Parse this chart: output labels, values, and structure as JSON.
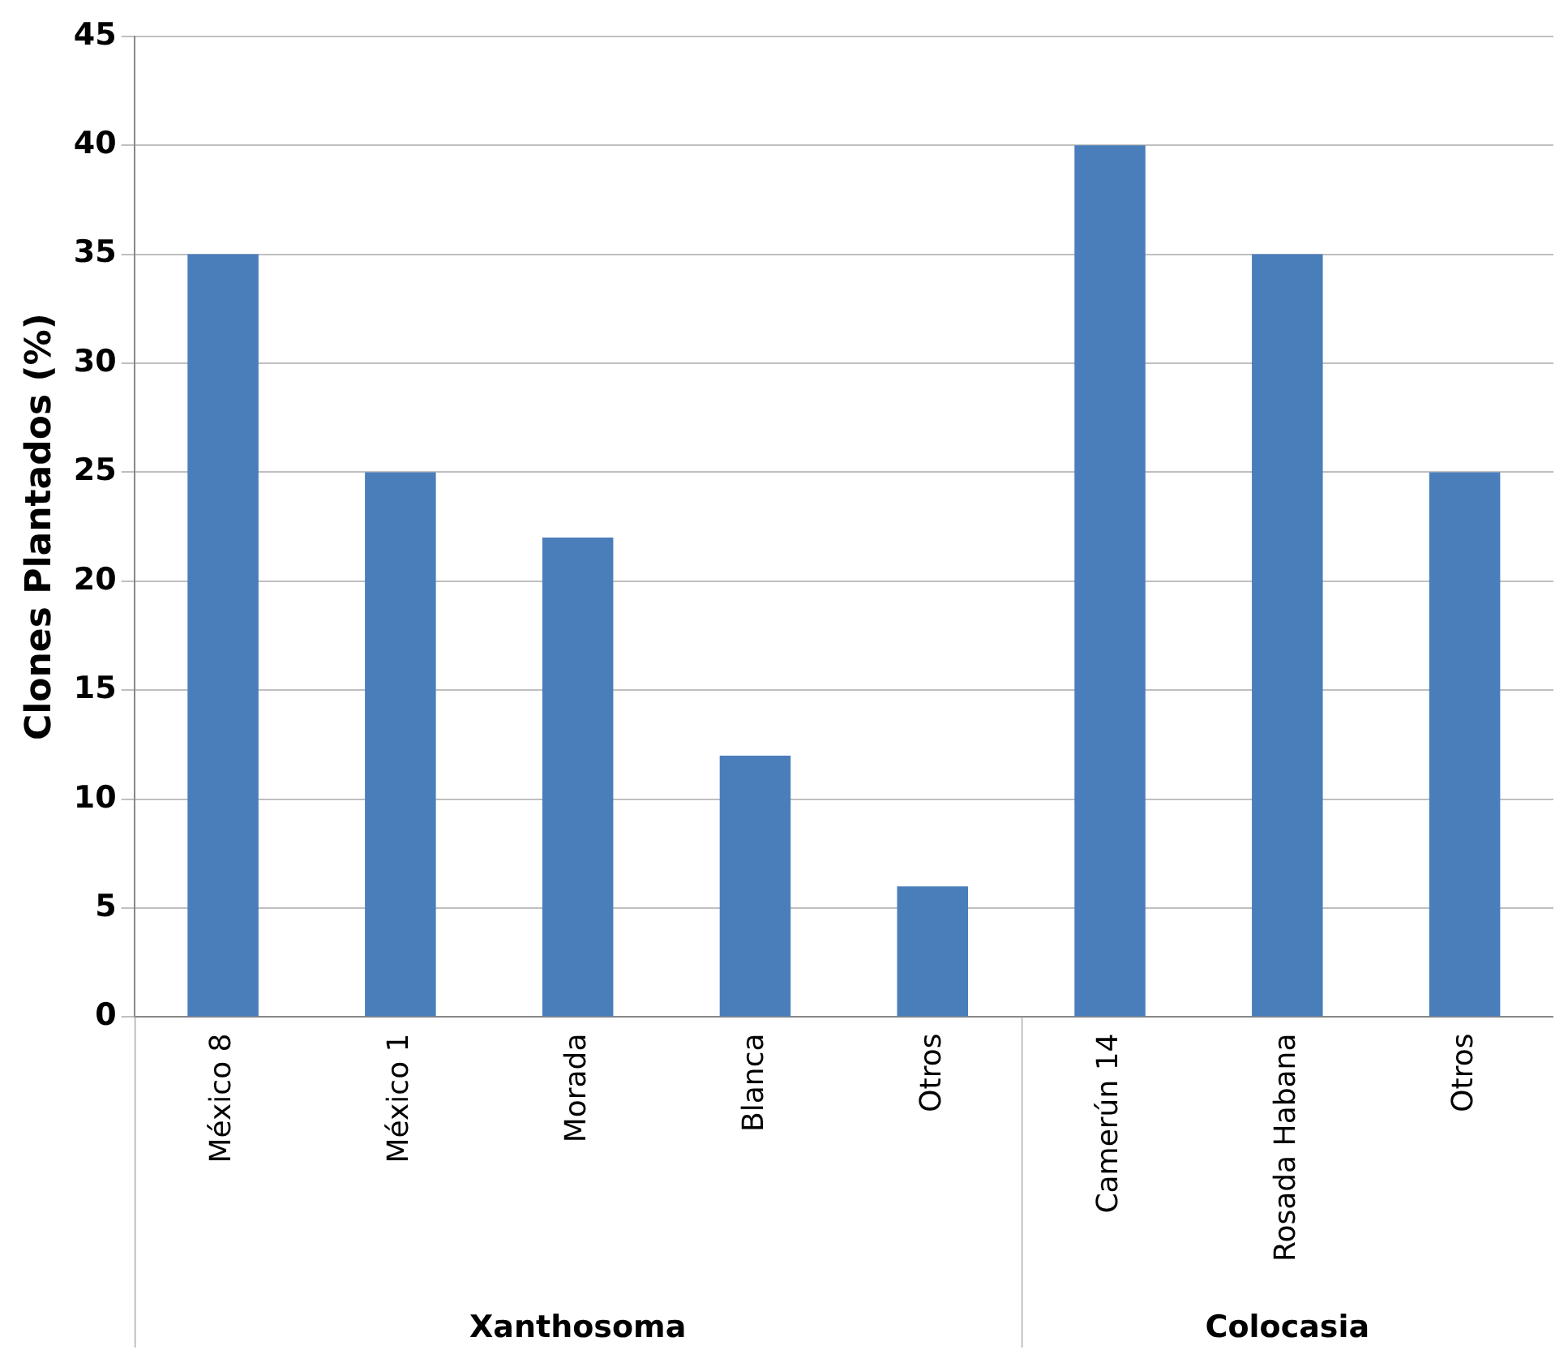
{
  "chart_data": {
    "type": "bar",
    "ylabel": "Clones Plantados (%)",
    "categories": [
      "México 8",
      "México 1",
      "Morada",
      "Blanca",
      "Otros",
      "Camerún 14",
      "Rosada Habana",
      "Otros"
    ],
    "values": [
      35,
      25,
      22,
      12,
      6,
      40,
      35,
      25
    ],
    "color": "#4a7ebb",
    "ylim": [
      0,
      45
    ],
    "yticks": [
      0,
      5,
      10,
      15,
      20,
      25,
      30,
      35,
      40,
      45
    ],
    "grid": "y",
    "annotations": [
      "Xanthosoma",
      "Colocasia"
    ]
  }
}
